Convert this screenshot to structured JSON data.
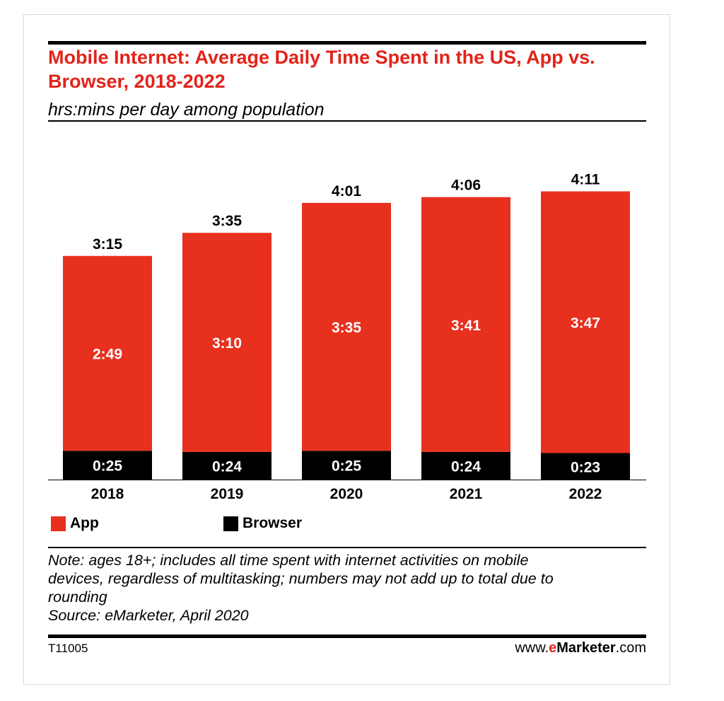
{
  "title": "Mobile Internet: Average Daily Time Spent in the US, App vs. Browser, 2018-2022",
  "subtitle": "hrs:mins per day among population",
  "legend": {
    "app_label": "App",
    "browser_label": "Browser"
  },
  "note_lines": [
    "Note: ages 18+; includes all time spent with internet activities on mobile",
    "devices, regardless of multitasking; numbers may not add up to total due to",
    "rounding",
    "Source: eMarketer, April 2020"
  ],
  "footer": {
    "code": "T11005",
    "site_prefix": "www.",
    "site_e": "e",
    "site_brand": "Marketer",
    "site_suffix": ".com"
  },
  "colors": {
    "app": "#e8301f",
    "browser": "#000000",
    "title": "#e2231a"
  },
  "chart_data": {
    "type": "bar",
    "stacked": true,
    "categories": [
      "2018",
      "2019",
      "2020",
      "2021",
      "2022"
    ],
    "series": [
      {
        "name": "Browser",
        "values": [
          25,
          24,
          25,
          24,
          23
        ],
        "labels": [
          "0:25",
          "0:24",
          "0:25",
          "0:24",
          "0:23"
        ],
        "color": "#000000"
      },
      {
        "name": "App",
        "values": [
          169,
          190,
          215,
          221,
          227
        ],
        "labels": [
          "2:49",
          "3:10",
          "3:35",
          "3:41",
          "3:47"
        ],
        "color": "#e8301f"
      }
    ],
    "totals": {
      "values": [
        195,
        215,
        241,
        246,
        251
      ],
      "labels": [
        "3:15",
        "3:35",
        "4:01",
        "4:06",
        "4:11"
      ]
    },
    "units": "minutes",
    "legend_position": "bottom-left",
    "grid": false
  }
}
